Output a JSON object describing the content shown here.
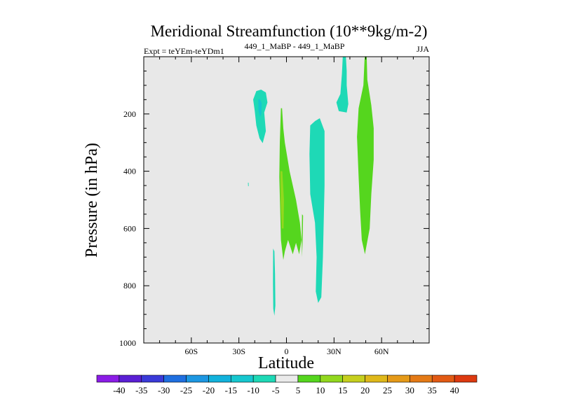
{
  "chart_data": {
    "type": "contour",
    "title": "Meridional Streamfunction (10**9kg/m-2)",
    "subtitle_left": "Expt = teYEm-teYDm1",
    "subtitle_center": "449_1_MaBP - 449_1_MaBP",
    "season": "JJA",
    "xlabel": "Latitude",
    "ylabel": "Pressure (in hPa)",
    "xlim": [
      -90,
      90
    ],
    "ylim": [
      0,
      1000
    ],
    "y_inverted": true,
    "x_ticks": [
      {
        "value": -60,
        "label": "60S"
      },
      {
        "value": -30,
        "label": "30S"
      },
      {
        "value": 0,
        "label": "0"
      },
      {
        "value": 30,
        "label": "30N"
      },
      {
        "value": 60,
        "label": "60N"
      }
    ],
    "y_ticks": [
      {
        "value": 200,
        "label": "200"
      },
      {
        "value": 400,
        "label": "400"
      },
      {
        "value": 600,
        "label": "600"
      },
      {
        "value": 800,
        "label": "800"
      },
      {
        "value": 1000,
        "label": "1000"
      }
    ],
    "background_color": "#e8e8e8",
    "colorbar": {
      "labels": [
        "-40",
        "-35",
        "-30",
        "-25",
        "-20",
        "-15",
        "-10",
        "-5",
        "5",
        "10",
        "15",
        "20",
        "25",
        "30",
        "35",
        "40"
      ],
      "colors": [
        "#8b1ce6",
        "#5a1fd4",
        "#3a3ad8",
        "#1f6fe0",
        "#1d97e2",
        "#12b2dc",
        "#16c7cf",
        "#1ed9b6",
        "#eaeaea",
        "#55d61e",
        "#92d81e",
        "#c6cf1e",
        "#dfb81a",
        "#e59a18",
        "#e47a16",
        "#e25a14",
        "#dd3a10"
      ]
    },
    "regions": [
      {
        "name": "neg-upper-sh",
        "level": "-10",
        "points": [
          [
            -19,
            120
          ],
          [
            -16,
            115
          ],
          [
            -13,
            125
          ],
          [
            -12,
            160
          ],
          [
            -14,
            195
          ],
          [
            -13,
            260
          ],
          [
            -15,
            302
          ],
          [
            -17,
            285
          ],
          [
            -19,
            240
          ],
          [
            -20,
            190
          ],
          [
            -21,
            150
          ]
        ]
      },
      {
        "name": "neg-upper-sh-core",
        "level": "-15",
        "points": [
          [
            -17.8,
            150
          ],
          [
            -16.8,
            148
          ],
          [
            -15.6,
            162
          ],
          [
            -15.8,
            200
          ],
          [
            -16.6,
            210
          ],
          [
            -17.6,
            190
          ]
        ]
      },
      {
        "name": "neg-upper-nh",
        "level": "-10",
        "points": [
          [
            35.7,
            -20
          ],
          [
            37.3,
            -20
          ],
          [
            38,
            50
          ],
          [
            38,
            100
          ],
          [
            39,
            165
          ],
          [
            38,
            195
          ],
          [
            33,
            190
          ],
          [
            31.5,
            160
          ],
          [
            34,
            130
          ],
          [
            35,
            60
          ]
        ]
      },
      {
        "name": "neg-mid",
        "level": "-10",
        "points": [
          [
            15,
            240
          ],
          [
            18,
            225
          ],
          [
            21,
            215
          ],
          [
            24,
            260
          ],
          [
            24,
            450
          ],
          [
            23,
            700
          ],
          [
            22,
            840
          ],
          [
            20,
            860
          ],
          [
            18.5,
            820
          ],
          [
            19,
            700
          ],
          [
            18,
            580
          ],
          [
            15,
            480
          ],
          [
            14.5,
            340
          ]
        ]
      },
      {
        "name": "neg-low",
        "level": "-10",
        "points": [
          [
            -8.4,
            670
          ],
          [
            -7.6,
            680
          ],
          [
            -7.2,
            760
          ],
          [
            -7.0,
            870
          ],
          [
            -7.6,
            905
          ],
          [
            -8.3,
            880
          ],
          [
            -8.5,
            790
          ]
        ]
      },
      {
        "name": "pos-mid",
        "level": "5",
        "points": [
          [
            -3.5,
            180
          ],
          [
            -2.8,
            180
          ],
          [
            -2,
            250
          ],
          [
            -1,
            300
          ],
          [
            2,
            400
          ],
          [
            6,
            500
          ],
          [
            8.5,
            580
          ],
          [
            9.5,
            640
          ],
          [
            8,
            690
          ],
          [
            6,
            650
          ],
          [
            4,
            690
          ],
          [
            1,
            640
          ],
          [
            -1,
            680
          ],
          [
            -2,
            710
          ],
          [
            -3.5,
            640
          ],
          [
            -4,
            530
          ],
          [
            -4.5,
            420
          ],
          [
            -4.2,
            300
          ]
        ]
      },
      {
        "name": "pos-mid-spike",
        "level": "5",
        "points": [
          [
            9.8,
            550
          ],
          [
            10.5,
            555
          ],
          [
            10.2,
            640
          ],
          [
            9.8,
            700
          ],
          [
            9.6,
            640
          ]
        ]
      },
      {
        "name": "pos-mid-core",
        "level": "10",
        "points": [
          [
            -3.8,
            400
          ],
          [
            -2.6,
            400
          ],
          [
            -1.6,
            500
          ],
          [
            -1.8,
            600
          ],
          [
            -2.9,
            600
          ],
          [
            -3.6,
            510
          ]
        ]
      },
      {
        "name": "pos-nh",
        "level": "5",
        "points": [
          [
            49.5,
            -20
          ],
          [
            50.5,
            -20
          ],
          [
            51,
            80
          ],
          [
            53.5,
            170
          ],
          [
            55,
            250
          ],
          [
            55,
            360
          ],
          [
            53.5,
            480
          ],
          [
            52.5,
            600
          ],
          [
            49.5,
            690
          ],
          [
            47.5,
            640
          ],
          [
            46.5,
            540
          ],
          [
            45.5,
            420
          ],
          [
            44.5,
            280
          ],
          [
            45.5,
            180
          ],
          [
            48.5,
            100
          ]
        ]
      },
      {
        "name": "neg-speck",
        "level": "-10",
        "points": [
          [
            -24.3,
            440
          ],
          [
            -23.9,
            440
          ],
          [
            -23.8,
            452
          ],
          [
            -24.2,
            452
          ]
        ]
      }
    ]
  }
}
